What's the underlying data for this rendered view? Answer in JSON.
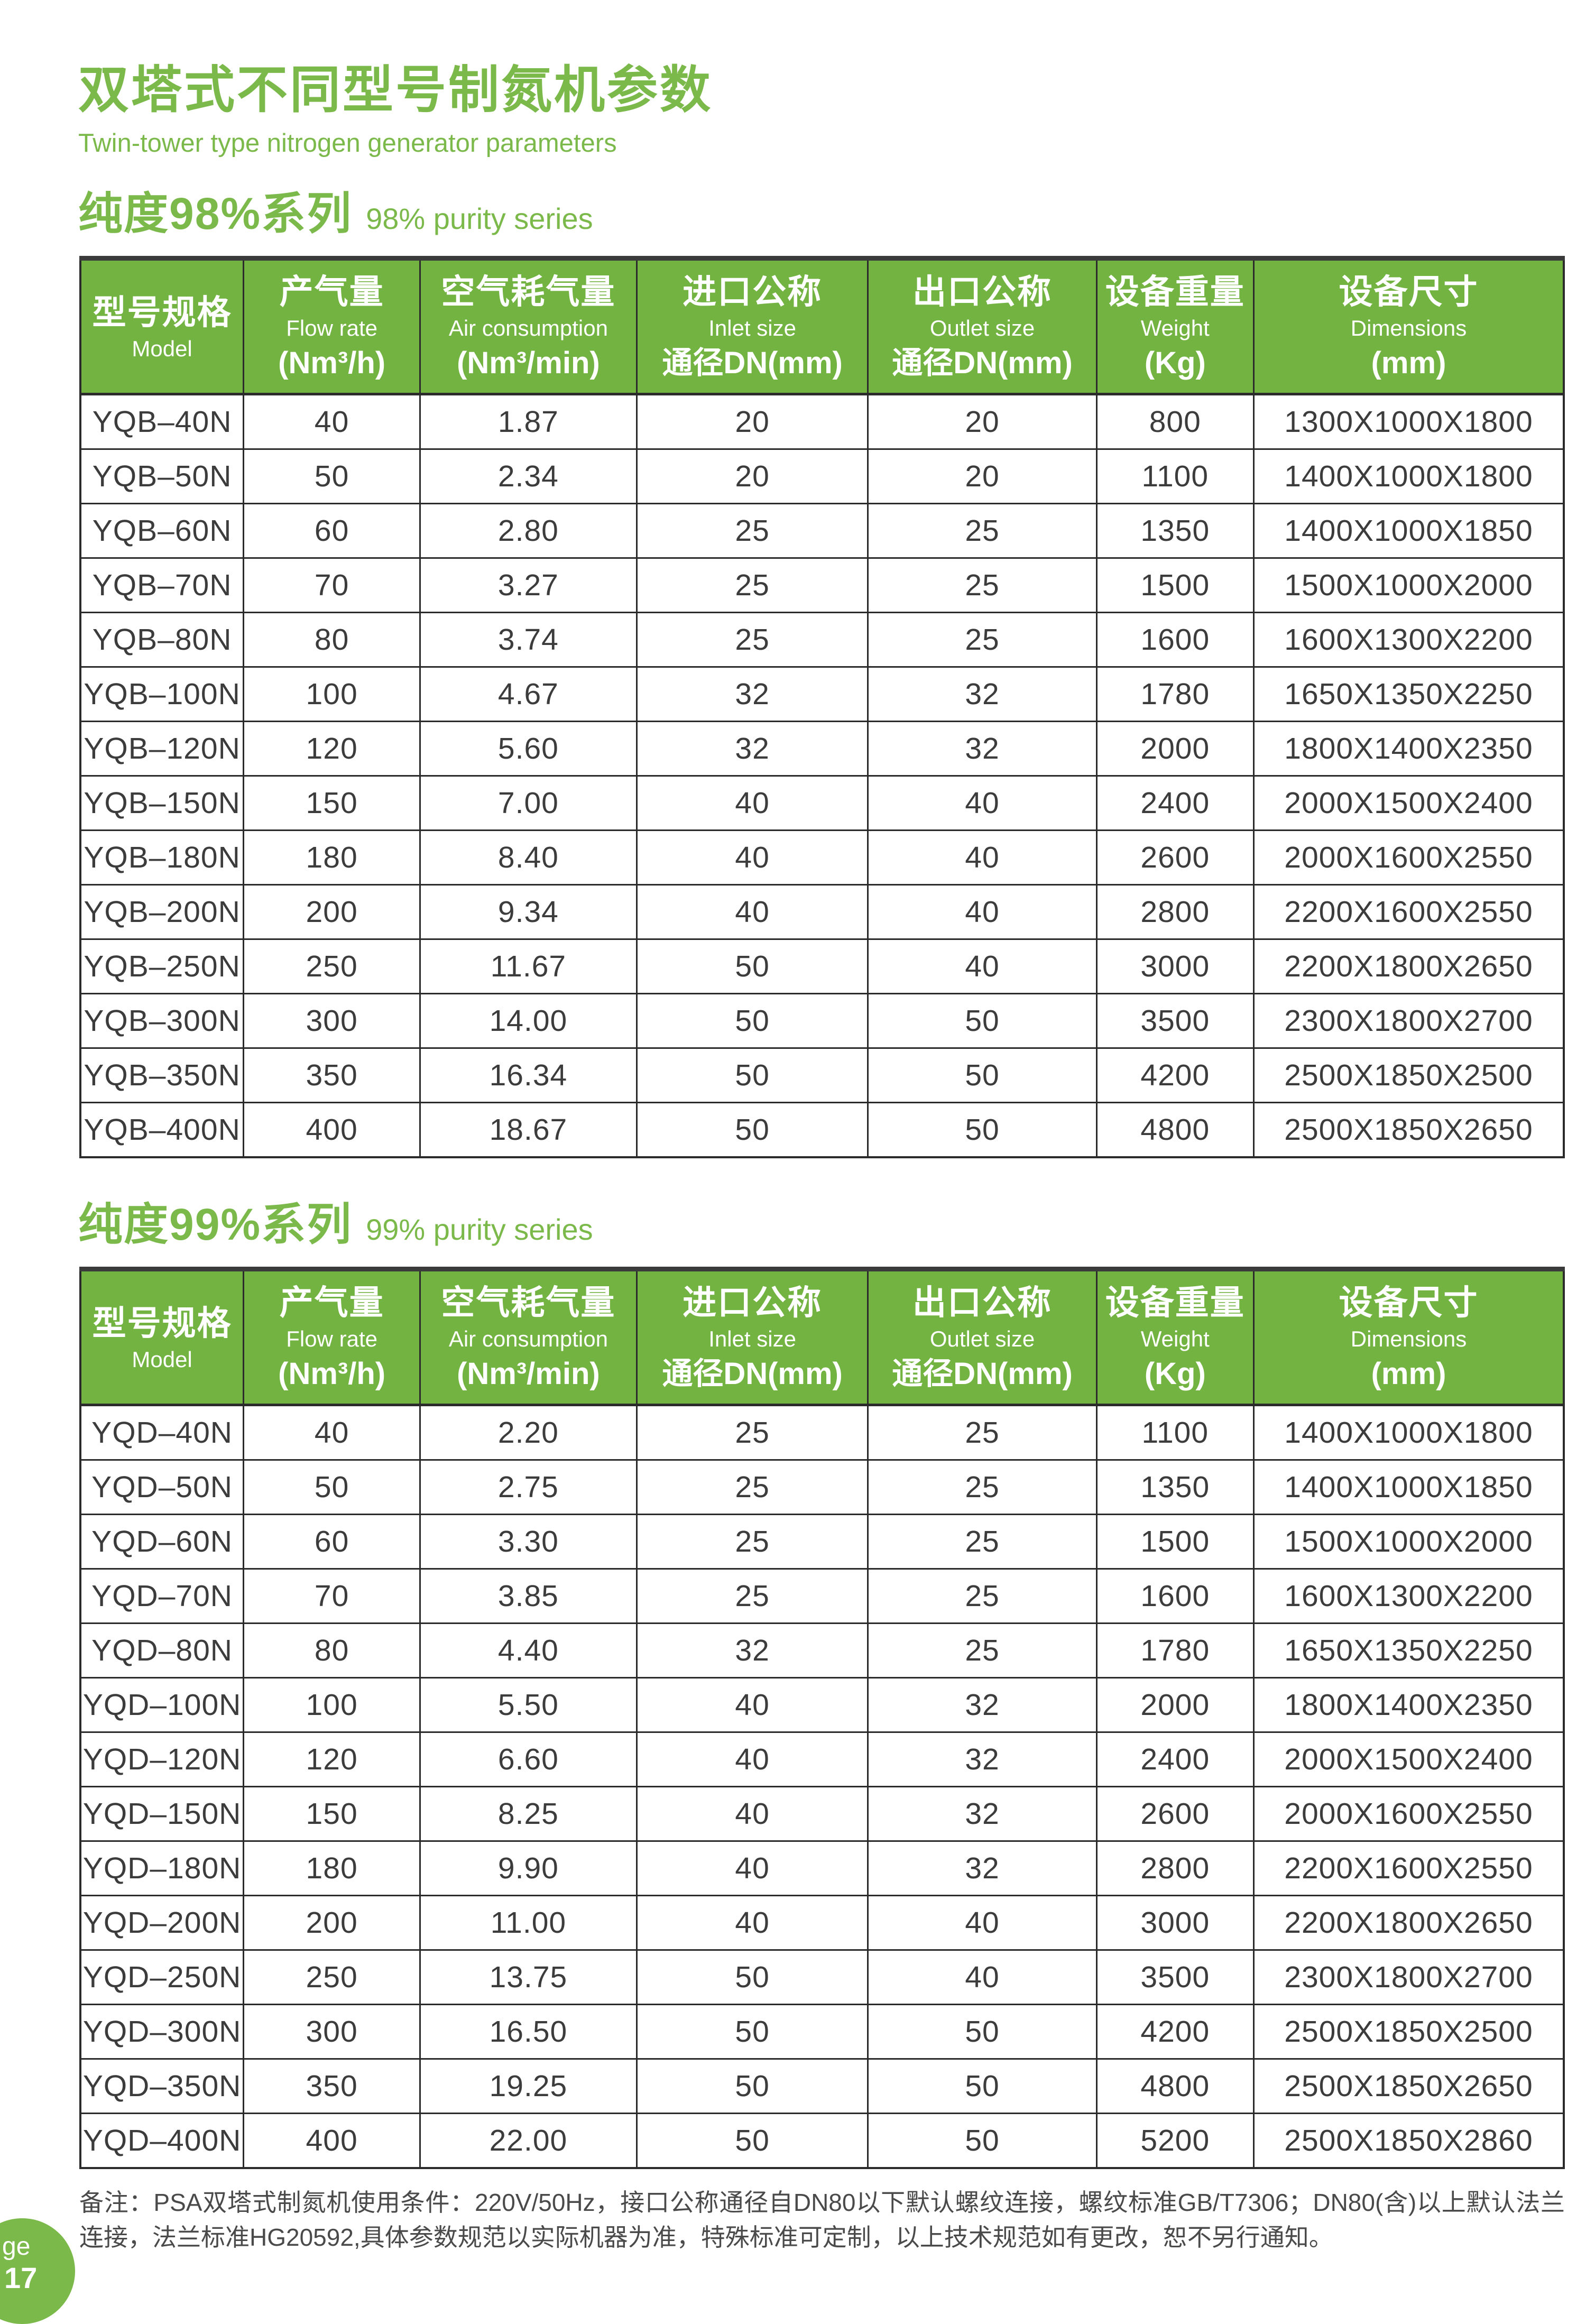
{
  "page": {
    "title_cn": "双塔式不同型号制氮机参数",
    "title_en": "Twin-tower type nitrogen generator parameters",
    "colors": {
      "accent": "#7cb94b",
      "header_bg": "#73b342"
    },
    "badge": {
      "line1": "ge",
      "line2": "17"
    }
  },
  "table_headers": {
    "columns": [
      {
        "cn": "型号规格",
        "en": "Model",
        "unit": ""
      },
      {
        "cn": "产气量",
        "en": "Flow rate",
        "unit": "(Nm³/h)"
      },
      {
        "cn": "空气耗气量",
        "en": "Air consumption",
        "unit": "(Nm³/min)"
      },
      {
        "cn": "进口公称",
        "en": "Inlet size",
        "unit": "通径DN(mm)"
      },
      {
        "cn": "出口公称",
        "en": "Outlet size",
        "unit": "通径DN(mm)"
      },
      {
        "cn": "设备重量",
        "en": "Weight",
        "unit": "(Kg)"
      },
      {
        "cn": "设备尺寸",
        "en": "Dimensions",
        "unit": "(mm)"
      }
    ]
  },
  "sections": [
    {
      "heading_cn": "纯度98%系列",
      "heading_en": "98% purity series",
      "rows": [
        [
          "YQB–40N",
          "40",
          "1.87",
          "20",
          "20",
          "800",
          "1300X1000X1800"
        ],
        [
          "YQB–50N",
          "50",
          "2.34",
          "20",
          "20",
          "1100",
          "1400X1000X1800"
        ],
        [
          "YQB–60N",
          "60",
          "2.80",
          "25",
          "25",
          "1350",
          "1400X1000X1850"
        ],
        [
          "YQB–70N",
          "70",
          "3.27",
          "25",
          "25",
          "1500",
          "1500X1000X2000"
        ],
        [
          "YQB–80N",
          "80",
          "3.74",
          "25",
          "25",
          "1600",
          "1600X1300X2200"
        ],
        [
          "YQB–100N",
          "100",
          "4.67",
          "32",
          "32",
          "1780",
          "1650X1350X2250"
        ],
        [
          "YQB–120N",
          "120",
          "5.60",
          "32",
          "32",
          "2000",
          "1800X1400X2350"
        ],
        [
          "YQB–150N",
          "150",
          "7.00",
          "40",
          "40",
          "2400",
          "2000X1500X2400"
        ],
        [
          "YQB–180N",
          "180",
          "8.40",
          "40",
          "40",
          "2600",
          "2000X1600X2550"
        ],
        [
          "YQB–200N",
          "200",
          "9.34",
          "40",
          "40",
          "2800",
          "2200X1600X2550"
        ],
        [
          "YQB–250N",
          "250",
          "11.67",
          "50",
          "40",
          "3000",
          "2200X1800X2650"
        ],
        [
          "YQB–300N",
          "300",
          "14.00",
          "50",
          "50",
          "3500",
          "2300X1800X2700"
        ],
        [
          "YQB–350N",
          "350",
          "16.34",
          "50",
          "50",
          "4200",
          "2500X1850X2500"
        ],
        [
          "YQB–400N",
          "400",
          "18.67",
          "50",
          "50",
          "4800",
          "2500X1850X2650"
        ]
      ]
    },
    {
      "heading_cn": "纯度99%系列",
      "heading_en": "99% purity series",
      "rows": [
        [
          "YQD–40N",
          "40",
          "2.20",
          "25",
          "25",
          "1100",
          "1400X1000X1800"
        ],
        [
          "YQD–50N",
          "50",
          "2.75",
          "25",
          "25",
          "1350",
          "1400X1000X1850"
        ],
        [
          "YQD–60N",
          "60",
          "3.30",
          "25",
          "25",
          "1500",
          "1500X1000X2000"
        ],
        [
          "YQD–70N",
          "70",
          "3.85",
          "25",
          "25",
          "1600",
          "1600X1300X2200"
        ],
        [
          "YQD–80N",
          "80",
          "4.40",
          "32",
          "25",
          "1780",
          "1650X1350X2250"
        ],
        [
          "YQD–100N",
          "100",
          "5.50",
          "40",
          "32",
          "2000",
          "1800X1400X2350"
        ],
        [
          "YQD–120N",
          "120",
          "6.60",
          "40",
          "32",
          "2400",
          "2000X1500X2400"
        ],
        [
          "YQD–150N",
          "150",
          "8.25",
          "40",
          "32",
          "2600",
          "2000X1600X2550"
        ],
        [
          "YQD–180N",
          "180",
          "9.90",
          "40",
          "32",
          "2800",
          "2200X1600X2550"
        ],
        [
          "YQD–200N",
          "200",
          "11.00",
          "40",
          "40",
          "3000",
          "2200X1800X2650"
        ],
        [
          "YQD–250N",
          "250",
          "13.75",
          "50",
          "40",
          "3500",
          "2300X1800X2700"
        ],
        [
          "YQD–300N",
          "300",
          "16.50",
          "50",
          "50",
          "4200",
          "2500X1850X2500"
        ],
        [
          "YQD–350N",
          "350",
          "19.25",
          "50",
          "50",
          "4800",
          "2500X1850X2650"
        ],
        [
          "YQD–400N",
          "400",
          "22.00",
          "50",
          "50",
          "5200",
          "2500X1850X2860"
        ]
      ]
    }
  ],
  "footnote": "备注：PSA双塔式制氮机使用条件：220V/50Hz，接口公称通径自DN80以下默认螺纹连接，螺纹标准GB/T7306；DN80(含)以上默认法兰连接，法兰标准HG20592,具体参数规范以实际机器为准，特殊标准可定制，以上技术规范如有更改，恕不另行通知。"
}
